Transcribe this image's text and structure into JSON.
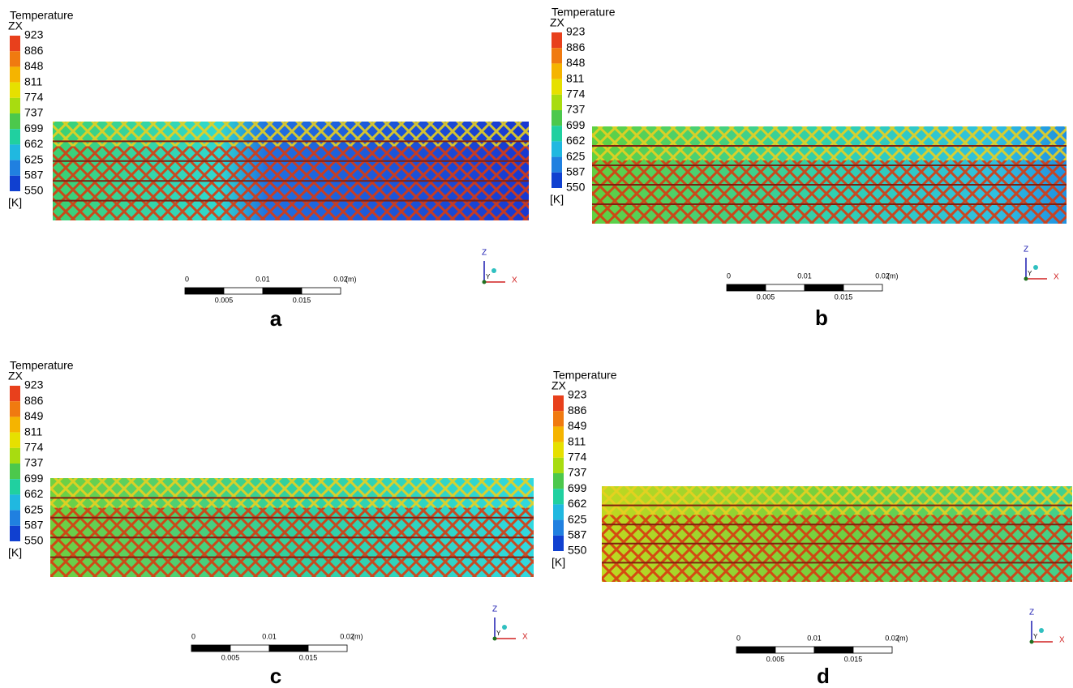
{
  "panels": [
    {
      "label": "a",
      "legend": {
        "title": "Temperature",
        "view": "ZX",
        "ticks": [
          "923",
          "886",
          "848",
          "811",
          "774",
          "737",
          "699",
          "662",
          "625",
          "587",
          "550"
        ],
        "unit": "[K]"
      },
      "scale_bar": {
        "top": [
          "0",
          "0.01",
          "0.02"
        ],
        "unit": "(m)",
        "bottom": [
          "0.005",
          "0.015"
        ]
      },
      "axes": {
        "z": "Z",
        "y": "Y",
        "x": "X"
      }
    },
    {
      "label": "b",
      "legend": {
        "title": "Temperature",
        "view": "ZX",
        "ticks": [
          "923",
          "886",
          "848",
          "811",
          "774",
          "737",
          "699",
          "662",
          "625",
          "587",
          "550"
        ],
        "unit": "[K]"
      },
      "scale_bar": {
        "top": [
          "0",
          "0.01",
          "0.02"
        ],
        "unit": "(m)",
        "bottom": [
          "0.005",
          "0.015"
        ]
      },
      "axes": {
        "z": "Z",
        "y": "Y",
        "x": "X"
      }
    },
    {
      "label": "c",
      "legend": {
        "title": "Temperature",
        "view": "ZX",
        "ticks": [
          "923",
          "886",
          "849",
          "811",
          "774",
          "737",
          "699",
          "662",
          "625",
          "587",
          "550"
        ],
        "unit": "[K]"
      },
      "scale_bar": {
        "top": [
          "0",
          "0.01",
          "0.02"
        ],
        "unit": "(m)",
        "bottom": [
          "0.005",
          "0.015"
        ]
      },
      "axes": {
        "z": "Z",
        "y": "Y",
        "x": "X"
      }
    },
    {
      "label": "d",
      "legend": {
        "title": "Temperature",
        "view": "ZX",
        "ticks": [
          "923",
          "886",
          "849",
          "811",
          "774",
          "737",
          "699",
          "662",
          "625",
          "587",
          "550"
        ],
        "unit": "[K]"
      },
      "scale_bar": {
        "top": [
          "0",
          "0.01",
          "0.02"
        ],
        "unit": "(m)",
        "bottom": [
          "0.005",
          "0.015"
        ]
      },
      "axes": {
        "z": "Z",
        "y": "Y",
        "x": "X"
      }
    }
  ]
}
